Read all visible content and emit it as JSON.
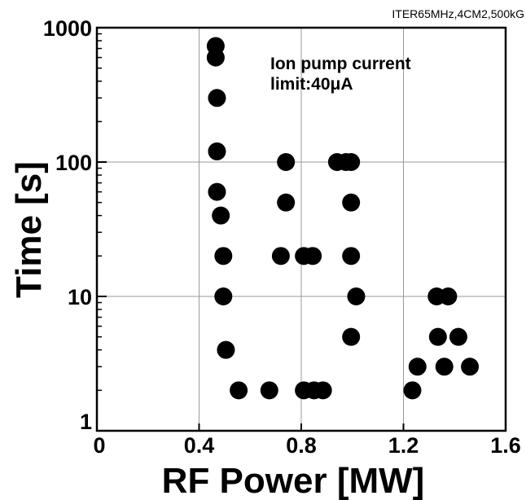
{
  "chart_data": {
    "type": "scatter",
    "corner_label": "ITER65MHz,4CM2,500kG",
    "annotation_line1": "Ion pump current",
    "annotation_line2": "limit:40μA",
    "xlabel": "RF Power [MW]",
    "ylabel": "Time [s]",
    "x_scale": "linear",
    "y_scale": "log",
    "xlim": [
      0,
      1.6
    ],
    "ylim": [
      1,
      1000
    ],
    "x_ticks": [
      "0",
      "0.4",
      "0.8",
      "1.2",
      "1.6"
    ],
    "y_ticks": [
      "1",
      "10",
      "100",
      "1000"
    ],
    "grid": true,
    "marker_color": "#000000",
    "points": [
      {
        "x": 0.465,
        "y": 730
      },
      {
        "x": 0.465,
        "y": 600
      },
      {
        "x": 0.47,
        "y": 300
      },
      {
        "x": 0.47,
        "y": 120
      },
      {
        "x": 0.47,
        "y": 60
      },
      {
        "x": 0.485,
        "y": 40
      },
      {
        "x": 0.495,
        "y": 20
      },
      {
        "x": 0.495,
        "y": 10
      },
      {
        "x": 0.505,
        "y": 4
      },
      {
        "x": 0.555,
        "y": 2
      },
      {
        "x": 0.675,
        "y": 2
      },
      {
        "x": 0.72,
        "y": 20
      },
      {
        "x": 0.74,
        "y": 100
      },
      {
        "x": 0.74,
        "y": 50
      },
      {
        "x": 0.81,
        "y": 20
      },
      {
        "x": 0.81,
        "y": 2
      },
      {
        "x": 0.845,
        "y": 20
      },
      {
        "x": 0.85,
        "y": 2
      },
      {
        "x": 0.885,
        "y": 2
      },
      {
        "x": 0.94,
        "y": 100
      },
      {
        "x": 0.975,
        "y": 100
      },
      {
        "x": 0.995,
        "y": 100
      },
      {
        "x": 0.995,
        "y": 50
      },
      {
        "x": 0.995,
        "y": 20
      },
      {
        "x": 1.015,
        "y": 10
      },
      {
        "x": 0.995,
        "y": 5
      },
      {
        "x": 1.235,
        "y": 2
      },
      {
        "x": 1.255,
        "y": 3
      },
      {
        "x": 1.33,
        "y": 10
      },
      {
        "x": 1.335,
        "y": 5
      },
      {
        "x": 1.36,
        "y": 3
      },
      {
        "x": 1.375,
        "y": 10
      },
      {
        "x": 1.415,
        "y": 5
      },
      {
        "x": 1.46,
        "y": 3
      }
    ]
  }
}
